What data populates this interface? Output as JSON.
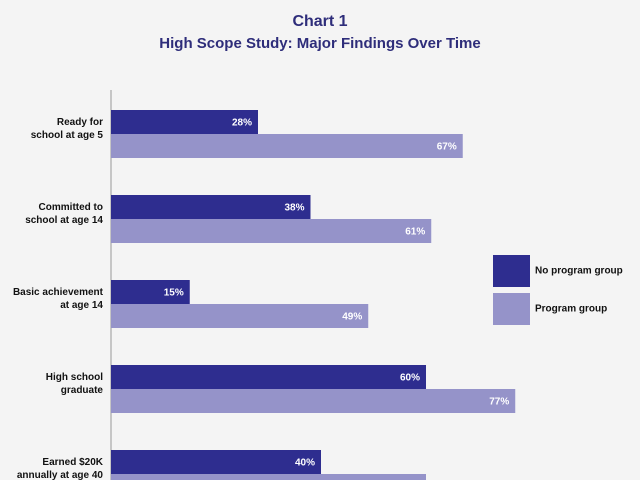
{
  "chart_data": {
    "type": "hbar",
    "title": "Chart 1",
    "subtitle": "High Scope Study: Major Findings Over Time",
    "categories": [
      [
        "Ready for",
        "school at age 5"
      ],
      [
        "Committed to",
        "school at age 14"
      ],
      [
        "Basic achievement",
        "at age 14"
      ],
      [
        "High school",
        "graduate"
      ],
      [
        "Earned $20K",
        "annually at age 40"
      ]
    ],
    "xlim": [
      0,
      100
    ],
    "legend": "right",
    "series": [
      {
        "name": "No program group",
        "color": "#2e2d8f",
        "values": [
          28,
          38,
          15,
          60,
          40
        ],
        "value_labels": [
          "28%",
          "38%",
          "15%",
          "60%",
          "40%"
        ]
      },
      {
        "name": "Program group",
        "color": "#9593c9",
        "values": [
          67,
          61,
          49,
          77,
          60
        ],
        "value_labels": [
          "67%",
          "61%",
          "49%",
          "77%",
          null
        ]
      }
    ]
  }
}
